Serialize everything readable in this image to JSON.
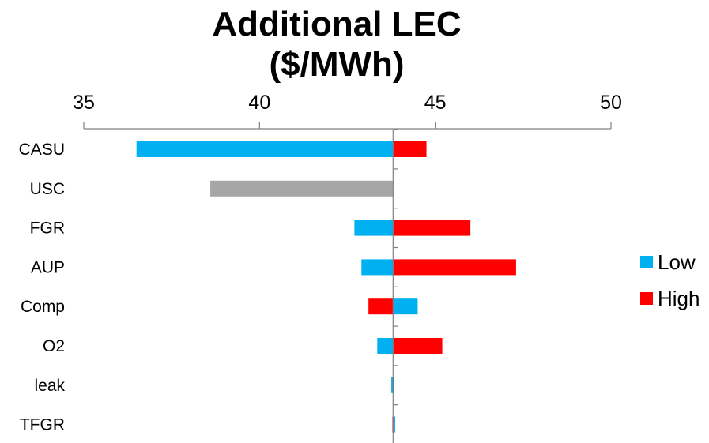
{
  "chart_data": {
    "type": "bar",
    "orientation": "horizontal",
    "title": [
      "Additional LEC",
      "($/MWh)"
    ],
    "xlim": [
      35,
      50
    ],
    "x_ticks": [
      35,
      40,
      45,
      50
    ],
    "x_axis_position": "top",
    "baseline": 43.8,
    "grid": false,
    "legend_position": "right",
    "categories": [
      "CASU",
      "USC",
      "FGR",
      "AUP",
      "Comp",
      "O2",
      "leak",
      "TFGR"
    ],
    "series": [
      {
        "name": "Low",
        "color": "#00b0f0"
      },
      {
        "name": "High",
        "color": "#ff0000"
      }
    ],
    "bars": [
      {
        "category": "CASU",
        "segments": [
          {
            "from": 36.5,
            "to": 43.8,
            "color": "#00b0f0"
          },
          {
            "from": 43.8,
            "to": 44.75,
            "color": "#ff0000"
          }
        ]
      },
      {
        "category": "USC",
        "segments": [
          {
            "from": 38.6,
            "to": 43.8,
            "color": "#a6a6a6"
          }
        ]
      },
      {
        "category": "FGR",
        "segments": [
          {
            "from": 42.7,
            "to": 43.8,
            "color": "#00b0f0"
          },
          {
            "from": 43.8,
            "to": 46.0,
            "color": "#ff0000"
          }
        ]
      },
      {
        "category": "AUP",
        "segments": [
          {
            "from": 42.9,
            "to": 43.8,
            "color": "#00b0f0"
          },
          {
            "from": 43.8,
            "to": 47.3,
            "color": "#ff0000"
          }
        ]
      },
      {
        "category": "Comp",
        "segments": [
          {
            "from": 43.1,
            "to": 43.8,
            "color": "#ff0000"
          },
          {
            "from": 43.8,
            "to": 44.5,
            "color": "#00b0f0"
          }
        ]
      },
      {
        "category": "O2",
        "segments": [
          {
            "from": 43.35,
            "to": 43.8,
            "color": "#00b0f0"
          },
          {
            "from": 43.8,
            "to": 45.2,
            "color": "#ff0000"
          }
        ]
      },
      {
        "category": "leak",
        "segments": [
          {
            "from": 43.75,
            "to": 43.8,
            "color": "#00b0f0"
          },
          {
            "from": 43.8,
            "to": 43.82,
            "color": "#ff0000"
          }
        ]
      },
      {
        "category": "TFGR",
        "segments": [
          {
            "from": 43.78,
            "to": 43.8,
            "color": "#ff0000"
          },
          {
            "from": 43.8,
            "to": 43.86,
            "color": "#00b0f0"
          }
        ]
      }
    ]
  }
}
